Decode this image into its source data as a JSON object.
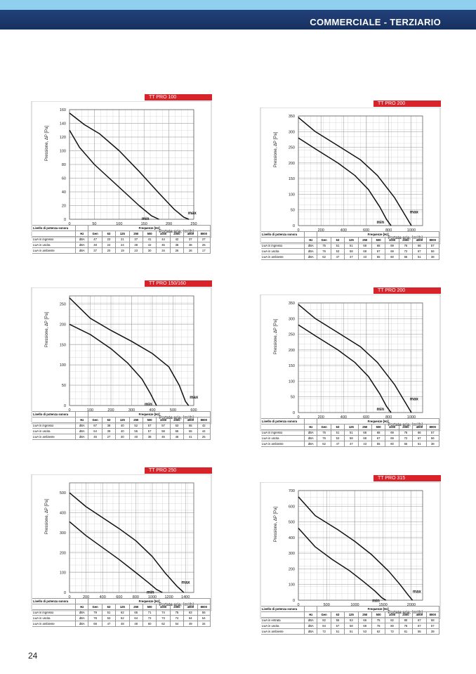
{
  "header": {
    "title": "COMMERCIALE - TERZIARIO"
  },
  "page_number": "24",
  "common": {
    "ylabel": "Pressione, ΔP [Pa]",
    "xlabel": "Portata aria, [m³/h]",
    "table_title": "Livello di potenza sonora",
    "freq_title": "Frequenze [Hz]",
    "columns": [
      "Hz",
      "Gen",
      "63",
      "125",
      "250",
      "500",
      "1000",
      "2000",
      "4000",
      "8000"
    ],
    "max_label": "max",
    "min_label": "min"
  },
  "panels": [
    {
      "title": "TT PRO 100",
      "chart_data": {
        "type": "line",
        "xlim": [
          0,
          250
        ],
        "ylim": [
          0,
          160
        ],
        "xticks": [
          0,
          50,
          100,
          150,
          200,
          250
        ],
        "yticks": [
          0,
          20,
          40,
          60,
          80,
          100,
          120,
          140,
          160
        ],
        "series": [
          {
            "name": "max",
            "x": [
              0,
              30,
              60,
              100,
              140,
              180,
              210,
              230,
              240
            ],
            "y": [
              155,
              138,
              125,
              100,
              70,
              38,
              15,
              3,
              0
            ]
          },
          {
            "name": "min",
            "x": [
              0,
              20,
              50,
              80,
              110,
              140,
              165,
              180
            ],
            "y": [
              130,
              105,
              80,
              60,
              40,
              20,
              5,
              0
            ]
          }
        ]
      },
      "rows": [
        {
          "label": "LwA in ingresso",
          "unit": "dBA",
          "values": [
            "47",
            "23",
            "21",
            "37",
            "41",
            "44",
            "42",
            "37",
            "27"
          ]
        },
        {
          "label": "LwA in uscita",
          "unit": "dBA",
          "values": [
            "48",
            "24",
            "24",
            "38",
            "42",
            "45",
            "38",
            "38",
            "26"
          ]
        },
        {
          "label": "LwA in ambiente",
          "unit": "dBA",
          "values": [
            "37",
            "20",
            "19",
            "23",
            "30",
            "34",
            "26",
            "26",
            "17"
          ]
        }
      ]
    },
    {
      "title": "TT PRO 200",
      "chart_data": {
        "type": "line",
        "xlim": [
          0,
          1100
        ],
        "ylim": [
          0,
          350
        ],
        "xticks": [
          0,
          200,
          400,
          600,
          800,
          1000
        ],
        "yticks": [
          0,
          50,
          100,
          150,
          200,
          250,
          300,
          350
        ],
        "series": [
          {
            "name": "max",
            "x": [
              0,
              150,
              350,
              550,
              700,
              850,
              950,
              1000
            ],
            "y": [
              345,
              300,
              255,
              210,
              160,
              90,
              30,
              0
            ]
          },
          {
            "name": "min",
            "x": [
              0,
              150,
              350,
              500,
              620,
              720,
              780,
              820
            ],
            "y": [
              280,
              245,
              200,
              160,
              115,
              60,
              20,
              0
            ]
          }
        ]
      },
      "rows": [
        {
          "label": "LwA in ingresso",
          "unit": "dBA",
          "values": [
            "75",
            "51",
            "51",
            "68",
            "68",
            "69",
            "76",
            "66",
            "57"
          ]
        },
        {
          "label": "LwA in uscita",
          "unit": "dBA",
          "values": [
            "76",
            "53",
            "58",
            "68",
            "67",
            "69",
            "72",
            "67",
            "56"
          ]
        },
        {
          "label": "LwA in ambiente",
          "unit": "dBA",
          "values": [
            "62",
            "47",
            "47",
            "43",
            "55",
            "60",
            "55",
            "51",
            "38"
          ]
        }
      ]
    },
    {
      "title": "TT PRO 150/160",
      "chart_data": {
        "type": "line",
        "xlim": [
          0,
          600
        ],
        "ylim": [
          0,
          270
        ],
        "xticks": [
          0,
          100,
          200,
          300,
          400,
          500,
          600
        ],
        "yticks": [
          0,
          50,
          100,
          150,
          200,
          250
        ],
        "series": [
          {
            "name": "max",
            "x": [
              0,
              100,
              200,
              300,
              400,
              480,
              530,
              560,
              575
            ],
            "y": [
              265,
              215,
              185,
              158,
              128,
              95,
              50,
              10,
              0
            ]
          },
          {
            "name": "min",
            "x": [
              0,
              100,
              200,
              280,
              350,
              390,
              410,
              420
            ],
            "y": [
              200,
              175,
              140,
              105,
              65,
              30,
              10,
              0
            ]
          }
        ]
      },
      "rows": [
        {
          "label": "LwA in ingresso",
          "unit": "dBA",
          "values": [
            "67",
            "38",
            "40",
            "52",
            "57",
            "57",
            "63",
            "55",
            "42"
          ]
        },
        {
          "label": "LwA in uscita",
          "unit": "dBA",
          "values": [
            "64",
            "39",
            "40",
            "55",
            "57",
            "58",
            "65",
            "55",
            "44"
          ]
        },
        {
          "label": "LwA in ambiente",
          "unit": "dBA",
          "values": [
            "45",
            "27",
            "30",
            "40",
            "38",
            "45",
            "46",
            "41",
            "25"
          ]
        }
      ]
    },
    {
      "title": "TT PRO 200",
      "chart_data": {
        "type": "line",
        "xlim": [
          0,
          1100
        ],
        "ylim": [
          0,
          350
        ],
        "xticks": [
          0,
          200,
          400,
          600,
          800,
          1000
        ],
        "yticks": [
          0,
          50,
          100,
          150,
          200,
          250,
          300,
          350
        ],
        "series": [
          {
            "name": "max",
            "x": [
              0,
              150,
              350,
              550,
              700,
              850,
              950,
              1000
            ],
            "y": [
              345,
              300,
              255,
              210,
              160,
              90,
              30,
              0
            ]
          },
          {
            "name": "min",
            "x": [
              0,
              150,
              350,
              500,
              620,
              720,
              780,
              820
            ],
            "y": [
              280,
              245,
              200,
              160,
              115,
              60,
              20,
              0
            ]
          }
        ]
      },
      "rows": [
        {
          "label": "LwA in ingresso",
          "unit": "dBA",
          "values": [
            "75",
            "51",
            "51",
            "68",
            "68",
            "69",
            "76",
            "66",
            "57"
          ]
        },
        {
          "label": "LwA in uscita",
          "unit": "dBA",
          "values": [
            "76",
            "53",
            "58",
            "68",
            "67",
            "69",
            "72",
            "67",
            "56"
          ]
        },
        {
          "label": "LwA in ambiente",
          "unit": "dBA",
          "values": [
            "62",
            "47",
            "47",
            "43",
            "55",
            "60",
            "55",
            "51",
            "38"
          ]
        }
      ]
    },
    {
      "title": "TT PRO 250",
      "chart_data": {
        "type": "line",
        "xlim": [
          0,
          1500
        ],
        "ylim": [
          0,
          550
        ],
        "xticks": [
          0,
          200,
          400,
          600,
          800,
          1000,
          1200,
          1400
        ],
        "yticks": [
          0,
          100,
          200,
          300,
          400,
          500
        ],
        "series": [
          {
            "name": "max",
            "x": [
              0,
              200,
              400,
              600,
              800,
              1000,
              1150,
              1300,
              1380
            ],
            "y": [
              500,
              430,
              375,
              320,
              260,
              180,
              100,
              30,
              0
            ]
          },
          {
            "name": "min",
            "x": [
              0,
              200,
              400,
              600,
              800,
              950,
              1050,
              1120
            ],
            "y": [
              355,
              285,
              225,
              165,
              100,
              50,
              15,
              0
            ]
          }
        ]
      },
      "rows": [
        {
          "label": "LwA in ingresso",
          "unit": "dBA",
          "values": [
            "79",
            "51",
            "62",
            "65",
            "71",
            "74",
            "75",
            "63",
            "55"
          ]
        },
        {
          "label": "LwA in uscita",
          "unit": "dBA",
          "values": [
            "78",
            "53",
            "52",
            "64",
            "72",
            "73",
            "74",
            "64",
            "54"
          ]
        },
        {
          "label": "LwA in ambiente",
          "unit": "dBA",
          "values": [
            "68",
            "47",
            "48",
            "48",
            "60",
            "62",
            "54",
            "49",
            "34"
          ]
        }
      ]
    },
    {
      "title": "TT PRO 315",
      "chart_data": {
        "type": "line",
        "xlim": [
          0,
          2200
        ],
        "ylim": [
          0,
          700
        ],
        "xticks": [
          0,
          500,
          1000,
          1500,
          2000
        ],
        "yticks": [
          0,
          100,
          200,
          300,
          400,
          500,
          600,
          700
        ],
        "series": [
          {
            "name": "max",
            "x": [
              0,
              300,
              700,
              1000,
              1300,
              1600,
              1800,
              1950,
              2020
            ],
            "y": [
              660,
              540,
              450,
              375,
              290,
              185,
              100,
              30,
              0
            ]
          },
          {
            "name": "min",
            "x": [
              0,
              300,
              600,
              900,
              1150,
              1350,
              1480,
              1550
            ],
            "y": [
              460,
              340,
              260,
              190,
              120,
              60,
              15,
              0
            ]
          }
        ]
      },
      "rows": [
        {
          "label": "LwA in entrata",
          "unit": "dBA",
          "values": [
            "82",
            "55",
            "53",
            "66",
            "75",
            "82",
            "80",
            "67",
            "58"
          ]
        },
        {
          "label": "LwA in uscita",
          "unit": "dBA",
          "values": [
            "84",
            "57",
            "58",
            "69",
            "78",
            "80",
            "78",
            "67",
            "57"
          ]
        },
        {
          "label": "LwA in ambiente",
          "unit": "dBA",
          "values": [
            "72",
            "51",
            "51",
            "53",
            "62",
            "72",
            "61",
            "55",
            "39"
          ]
        }
      ]
    }
  ]
}
